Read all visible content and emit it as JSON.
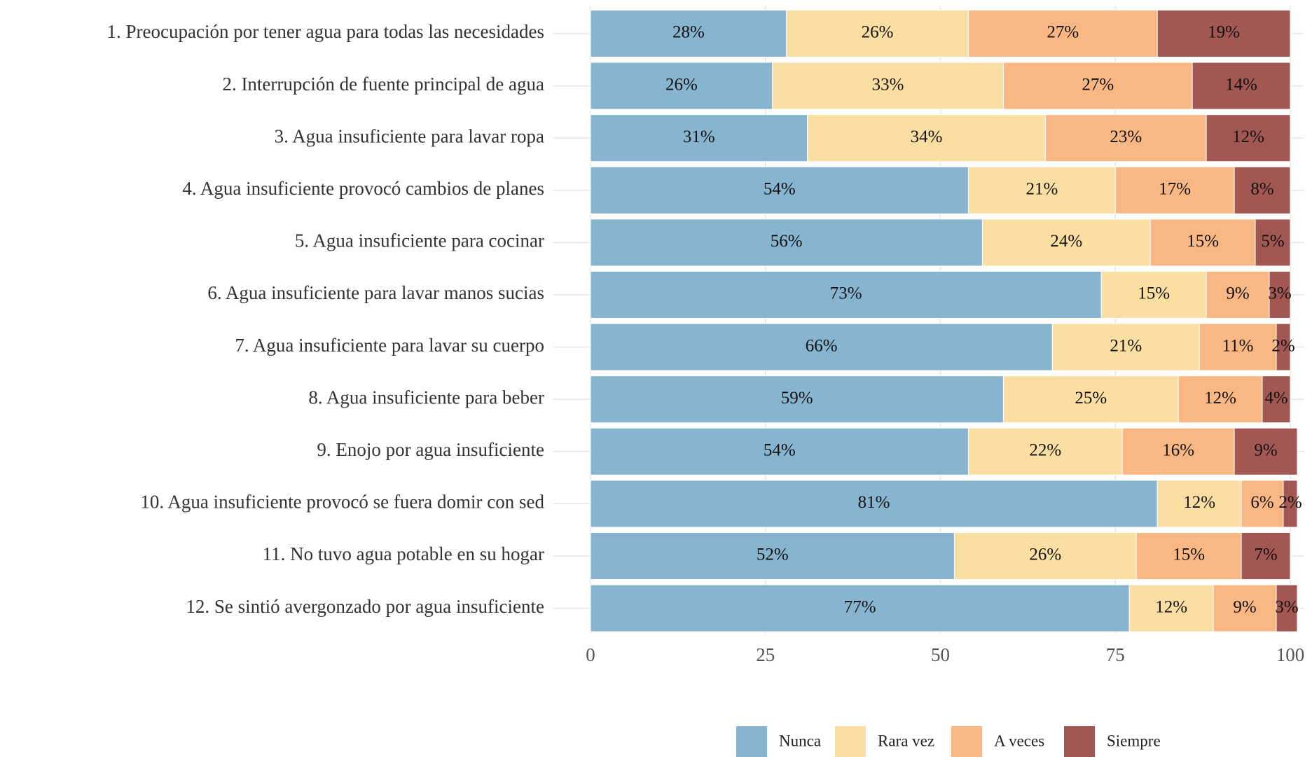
{
  "chart_data": {
    "type": "stacked_bar_horizontal",
    "categories": [
      "1. Preocupación por tener agua para todas las necesidades",
      "2. Interrupción de fuente principal de agua",
      "3. Agua insuficiente para lavar ropa",
      "4. Agua insuficiente provocó cambios de planes",
      "5. Agua insuficiente para cocinar",
      "6. Agua insuficiente para lavar manos sucias",
      "7. Agua insuficiente para lavar su cuerpo",
      "8. Agua insuficiente para beber",
      "9. Enojo por agua insuficiente",
      "10. Agua insuficiente provocó se fuera domir con sed",
      "11. No tuvo agua potable en su hogar",
      "12. Se sintió avergonzado por agua insuficiente"
    ],
    "series": [
      {
        "name": "Nunca",
        "color": "#87b5cf",
        "values": [
          28,
          26,
          31,
          54,
          56,
          73,
          66,
          59,
          54,
          81,
          52,
          77
        ],
        "value_labels": [
          "28%",
          "26%",
          "31%",
          "54%",
          "56%",
          "73%",
          "66%",
          "59%",
          "54%",
          "81%",
          "52%",
          "77%"
        ]
      },
      {
        "name": "Rara vez",
        "color": "#fbdea2",
        "values": [
          26,
          33,
          34,
          21,
          24,
          15,
          21,
          25,
          22,
          12,
          26,
          12
        ],
        "value_labels": [
          "26%",
          "33%",
          "34%",
          "21%",
          "24%",
          "15%",
          "21%",
          "25%",
          "22%",
          "12%",
          "26%",
          "12%"
        ]
      },
      {
        "name": "A veces",
        "color": "#f9b883",
        "values": [
          27,
          27,
          23,
          17,
          15,
          9,
          11,
          12,
          16,
          6,
          15,
          9
        ],
        "value_labels": [
          "27%",
          "27%",
          "23%",
          "17%",
          "15%",
          "9%",
          "11%",
          "12%",
          "16%",
          "6%",
          "15%",
          "9%"
        ]
      },
      {
        "name": "Siempre",
        "color": "#a35752",
        "values": [
          19,
          14,
          12,
          8,
          5,
          3,
          2,
          4,
          9,
          2,
          7,
          3
        ],
        "value_labels": [
          "19%",
          "14%",
          "12%",
          "8%",
          "5%",
          "3%",
          "2%",
          "4%",
          "9%",
          "2%",
          "7%",
          "3%"
        ]
      }
    ],
    "xlim": [
      0,
      100
    ],
    "xticks": [
      0,
      25,
      50,
      75,
      100
    ],
    "grid": true,
    "legend": "bottom"
  }
}
